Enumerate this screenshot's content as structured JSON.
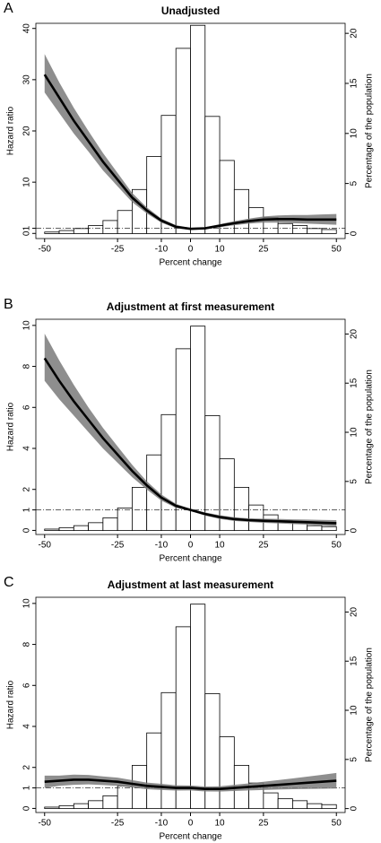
{
  "chart_data": [
    {
      "type": "combo",
      "panel": "A",
      "title": "Unadjusted",
      "xlabel": "Percent change",
      "ylabel": "Hazard ratio",
      "y2label": "Percentage of the population",
      "xlim": [
        -53,
        53
      ],
      "xticks": [
        -50,
        -25,
        -10,
        0,
        10,
        25,
        50
      ],
      "ylim": [
        -1,
        41
      ],
      "yticks": [
        0,
        1,
        10,
        20,
        30,
        40
      ],
      "y2lim": [
        -0.5,
        21
      ],
      "y2ticks": [
        0,
        5,
        10,
        15,
        20
      ],
      "reference_line": 1,
      "histogram": {
        "axis": "y2",
        "color": "#ffffff",
        "bins": [
          -50,
          -45,
          -40,
          -35,
          -30,
          -25,
          -20,
          -15,
          -10,
          -5,
          0,
          5,
          10,
          15,
          20,
          25,
          30,
          35,
          40,
          45,
          50
        ],
        "values": [
          0.15,
          0.3,
          0.5,
          0.8,
          1.3,
          2.3,
          4.4,
          7.7,
          11.8,
          18.5,
          20.8,
          11.7,
          7.3,
          4.4,
          2.6,
          1.6,
          1.0,
          0.8,
          0.5,
          0.4
        ]
      },
      "curve": {
        "color": "#000000",
        "band_color": "#7a7a7a",
        "x": [
          -50,
          -45,
          -40,
          -35,
          -30,
          -25,
          -20,
          -15,
          -10,
          -5,
          0,
          5,
          10,
          15,
          20,
          25,
          30,
          35,
          40,
          45,
          50
        ],
        "values": [
          31,
          26.5,
          22,
          18,
          14,
          10.5,
          7,
          4.5,
          2.5,
          1.3,
          0.9,
          1,
          1.5,
          2,
          2.4,
          2.7,
          2.8,
          2.8,
          2.7,
          2.7,
          2.7
        ],
        "lower": [
          27.5,
          23.5,
          19.5,
          16,
          12.3,
          9.2,
          6.1,
          3.9,
          2.1,
          1.0,
          0.7,
          0.8,
          1.2,
          1.6,
          1.9,
          2.1,
          2.1,
          2.0,
          1.9,
          1.8,
          1.7
        ],
        "upper": [
          35,
          29.5,
          24.5,
          20,
          15.7,
          11.8,
          7.9,
          5.1,
          2.9,
          1.6,
          1.1,
          1.2,
          1.8,
          2.4,
          2.9,
          3.3,
          3.5,
          3.6,
          3.6,
          3.7,
          3.8
        ]
      }
    },
    {
      "type": "combo",
      "panel": "B",
      "title": "Adjustment at first measurement",
      "xlabel": "Percent change",
      "ylabel": "Hazard ratio",
      "y2label": "Percentage of the population",
      "xlim": [
        -53,
        53
      ],
      "xticks": [
        -50,
        -25,
        -10,
        0,
        10,
        25,
        50
      ],
      "ylim": [
        -0.2,
        10.3
      ],
      "yticks": [
        0,
        1,
        2,
        4,
        6,
        8,
        10
      ],
      "y2lim": [
        -0.4,
        21.5
      ],
      "y2ticks": [
        0,
        5,
        10,
        15,
        20
      ],
      "reference_line": 1,
      "histogram": {
        "axis": "y2",
        "color": "#ffffff",
        "bins": [
          -50,
          -45,
          -40,
          -35,
          -30,
          -25,
          -20,
          -15,
          -10,
          -5,
          0,
          5,
          10,
          15,
          20,
          25,
          30,
          35,
          40,
          45,
          50
        ],
        "values": [
          0.15,
          0.3,
          0.5,
          0.8,
          1.3,
          2.3,
          4.4,
          7.7,
          11.8,
          18.5,
          20.8,
          11.7,
          7.3,
          4.4,
          2.6,
          1.6,
          1.0,
          0.8,
          0.5,
          0.4
        ]
      },
      "curve": {
        "color": "#000000",
        "band_color": "#7a7a7a",
        "x": [
          -50,
          -45,
          -40,
          -35,
          -30,
          -25,
          -20,
          -15,
          -10,
          -5,
          0,
          5,
          10,
          15,
          20,
          25,
          30,
          35,
          40,
          45,
          50
        ],
        "values": [
          8.4,
          7.3,
          6.3,
          5.4,
          4.5,
          3.7,
          2.9,
          2.2,
          1.6,
          1.2,
          1,
          0.8,
          0.65,
          0.55,
          0.5,
          0.47,
          0.45,
          0.42,
          0.4,
          0.37,
          0.35
        ],
        "lower": [
          7.3,
          6.4,
          5.6,
          4.8,
          4.0,
          3.3,
          2.6,
          2.0,
          1.45,
          1.1,
          0.95,
          0.72,
          0.56,
          0.46,
          0.41,
          0.37,
          0.34,
          0.31,
          0.28,
          0.24,
          0.2
        ],
        "upper": [
          9.6,
          8.3,
          7.1,
          6.0,
          5.0,
          4.1,
          3.2,
          2.4,
          1.75,
          1.3,
          1.05,
          0.88,
          0.74,
          0.64,
          0.59,
          0.57,
          0.56,
          0.54,
          0.53,
          0.51,
          0.5
        ]
      }
    },
    {
      "type": "combo",
      "panel": "C",
      "title": "Adjustment at last measurement",
      "xlabel": "Percent change",
      "ylabel": "Hazard ratio",
      "y2label": "Percentage of the population",
      "xlim": [
        -53,
        53
      ],
      "xticks": [
        -50,
        -25,
        -10,
        0,
        10,
        25,
        50
      ],
      "ylim": [
        -0.2,
        10.3
      ],
      "yticks": [
        0,
        1,
        2,
        4,
        6,
        8,
        10
      ],
      "y2lim": [
        -0.4,
        21.5
      ],
      "y2ticks": [
        0,
        5,
        10,
        15,
        20
      ],
      "reference_line": 1,
      "histogram": {
        "axis": "y2",
        "color": "#ffffff",
        "bins": [
          -50,
          -45,
          -40,
          -35,
          -30,
          -25,
          -20,
          -15,
          -10,
          -5,
          0,
          5,
          10,
          15,
          20,
          25,
          30,
          35,
          40,
          45,
          50
        ],
        "values": [
          0.15,
          0.3,
          0.5,
          0.8,
          1.3,
          2.3,
          4.4,
          7.7,
          11.8,
          18.5,
          20.8,
          11.7,
          7.3,
          4.4,
          2.6,
          1.6,
          1.0,
          0.8,
          0.5,
          0.4
        ]
      },
      "curve": {
        "color": "#000000",
        "band_color": "#7a7a7a",
        "x": [
          -50,
          -45,
          -40,
          -35,
          -30,
          -25,
          -20,
          -15,
          -10,
          -5,
          0,
          5,
          10,
          15,
          20,
          25,
          30,
          35,
          40,
          45,
          50
        ],
        "values": [
          1.3,
          1.35,
          1.4,
          1.4,
          1.35,
          1.3,
          1.2,
          1.1,
          1.05,
          1.0,
          1.0,
          0.95,
          0.95,
          1.0,
          1.05,
          1.1,
          1.15,
          1.2,
          1.25,
          1.3,
          1.35
        ],
        "lower": [
          1.0,
          1.1,
          1.15,
          1.17,
          1.14,
          1.1,
          1.02,
          0.94,
          0.9,
          0.87,
          0.88,
          0.83,
          0.82,
          0.85,
          0.88,
          0.9,
          0.92,
          0.94,
          0.95,
          0.96,
          0.97
        ],
        "upper": [
          1.6,
          1.6,
          1.65,
          1.63,
          1.56,
          1.5,
          1.38,
          1.26,
          1.2,
          1.13,
          1.12,
          1.07,
          1.08,
          1.15,
          1.22,
          1.3,
          1.38,
          1.46,
          1.55,
          1.64,
          1.73
        ]
      }
    }
  ]
}
